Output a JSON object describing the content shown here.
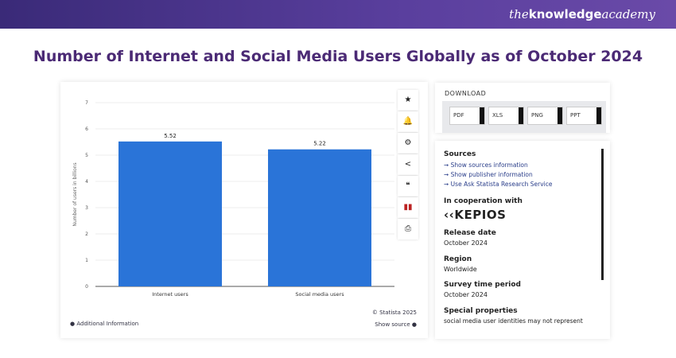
{
  "header": {
    "logo": "theknowledgeacademy"
  },
  "page_title": "Number of Internet and Social Media Users Globally as of October 2024",
  "chart_data": {
    "type": "bar",
    "categories": [
      "Internet users",
      "Social media users"
    ],
    "values": [
      5.52,
      5.22
    ],
    "value_labels": [
      "5.52",
      "5.22"
    ],
    "ylabel": "Number of users in billions",
    "ylim": [
      0,
      7
    ],
    "yticks": [
      "0",
      "1",
      "2",
      "3",
      "4",
      "5",
      "6",
      "7"
    ],
    "grid": true,
    "bar_color": "#2a74d8"
  },
  "chart_footer": {
    "copyright": "© Statista 2025",
    "additional": "Additional Information",
    "show_source": "Show source"
  },
  "toolbar": [
    "★",
    "🔔",
    "⚙",
    "<",
    "❝",
    "▮▮",
    "⎙"
  ],
  "download": {
    "heading": "DOWNLOAD",
    "buttons": [
      "PDF",
      "XLS",
      "PNG",
      "PPT"
    ]
  },
  "info": {
    "sources_heading": "Sources",
    "links": [
      "Show sources information",
      "Show publisher information",
      "Use Ask Statista Research Service"
    ],
    "coop_heading": "In cooperation with",
    "partner": "KEPIOS",
    "release_label": "Release date",
    "release_value": "October 2024",
    "region_label": "Region",
    "region_value": "Worldwide",
    "survey_label": "Survey time period",
    "survey_value": "October 2024",
    "special_label": "Special properties",
    "special_value": "social media user identities may not represent"
  }
}
